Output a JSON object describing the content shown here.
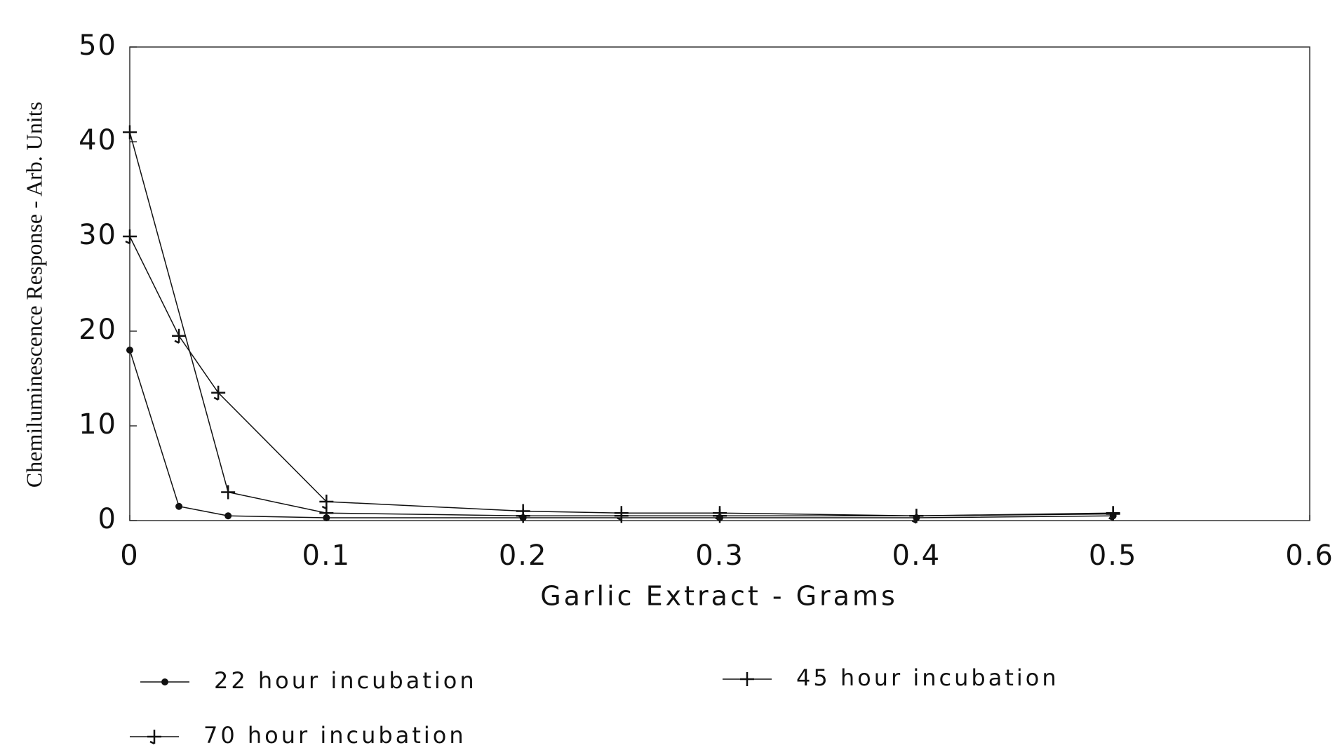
{
  "chart_data": {
    "type": "line",
    "xlabel": "Garlic Extract  - Grams",
    "ylabel": "Chemiluminescence Response - Arb. Units",
    "xlim": [
      0,
      0.6
    ],
    "xticks": [
      0,
      0.1,
      0.2,
      0.3,
      0.4,
      0.5,
      0.6
    ],
    "ylim": [
      0,
      50
    ],
    "yticks": [
      0,
      10,
      20,
      30,
      40,
      50
    ],
    "grid": false,
    "legend": "bottom",
    "series": [
      {
        "name": "22 hour incubation",
        "color": "#111111",
        "marker": "dot",
        "x": [
          0,
          0.025,
          0.05,
          0.1,
          0.2,
          0.3,
          0.4,
          0.5
        ],
        "values": [
          18,
          1.5,
          0.5,
          0.3,
          0.3,
          0.3,
          0.3,
          0.5
        ]
      },
      {
        "name": "45 hour incubation",
        "color": "#111111",
        "marker": "plus",
        "x": [
          0,
          0.05,
          0.1,
          0.2,
          0.25,
          0.3,
          0.4,
          0.5
        ],
        "values": [
          41,
          3,
          0.8,
          0.5,
          0.5,
          0.5,
          0.5,
          0.7
        ]
      },
      {
        "name": "70 hour incubation",
        "color": "#111111",
        "marker": "tick",
        "x": [
          0,
          0.025,
          0.045,
          0.1,
          0.2,
          0.25,
          0.3,
          0.4,
          0.5
        ],
        "values": [
          30,
          19.5,
          13.5,
          2,
          1,
          0.8,
          0.8,
          0.5,
          0.8
        ]
      }
    ]
  }
}
